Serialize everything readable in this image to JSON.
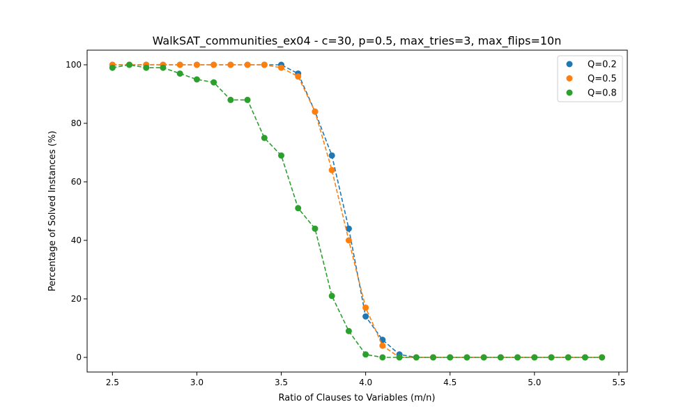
{
  "chart_data": {
    "type": "scatter",
    "title": "WalkSAT_communities_ex04 - c=30, p=0.5, max_tries=3, max_flips=10n",
    "xlabel": "Ratio of Clauses to Variables (m/n)",
    "ylabel": "Percentage of Solved Instances (%)",
    "xlim": [
      2.35,
      5.55
    ],
    "ylim": [
      -5,
      105
    ],
    "xticks": [
      2.5,
      3.0,
      3.5,
      4.0,
      4.5,
      5.0,
      5.5
    ],
    "xtick_labels": [
      "2.5",
      "3.0",
      "3.5",
      "4.0",
      "4.5",
      "5.0",
      "5.5"
    ],
    "yticks": [
      0,
      20,
      40,
      60,
      80,
      100
    ],
    "ytick_labels": [
      "0",
      "20",
      "40",
      "60",
      "80",
      "100"
    ],
    "grid": false,
    "legend_position": "top-right",
    "line_style": "dashed",
    "x": [
      2.5,
      2.6,
      2.7,
      2.8,
      2.9,
      3.0,
      3.1,
      3.2,
      3.3,
      3.4,
      3.5,
      3.6,
      3.7,
      3.8,
      3.9,
      4.0,
      4.1,
      4.2,
      4.3,
      4.4,
      4.5,
      4.6,
      4.7,
      4.8,
      4.9,
      5.0,
      5.1,
      5.2,
      5.3,
      5.4
    ],
    "series": [
      {
        "name": "Q=0.2",
        "color": "#1f77b4",
        "values": [
          100,
          100,
          100,
          100,
          100,
          100,
          100,
          100,
          100,
          100,
          100,
          97,
          84,
          69,
          44,
          14,
          6,
          1,
          0,
          0,
          0,
          0,
          0,
          0,
          0,
          0,
          0,
          0,
          0,
          0
        ]
      },
      {
        "name": "Q=0.5",
        "color": "#ff7f0e",
        "values": [
          100,
          100,
          100,
          100,
          100,
          100,
          100,
          100,
          100,
          100,
          99,
          96,
          84,
          64,
          40,
          17,
          4,
          0,
          0,
          0,
          0,
          0,
          0,
          0,
          0,
          0,
          0,
          0,
          0,
          0
        ]
      },
      {
        "name": "Q=0.8",
        "color": "#2ca02c",
        "values": [
          99,
          100,
          99,
          99,
          97,
          95,
          94,
          88,
          88,
          75,
          69,
          51,
          44,
          21,
          9,
          1,
          0,
          0,
          0,
          0,
          0,
          0,
          0,
          0,
          0,
          0,
          0,
          0,
          0,
          0
        ]
      }
    ]
  }
}
